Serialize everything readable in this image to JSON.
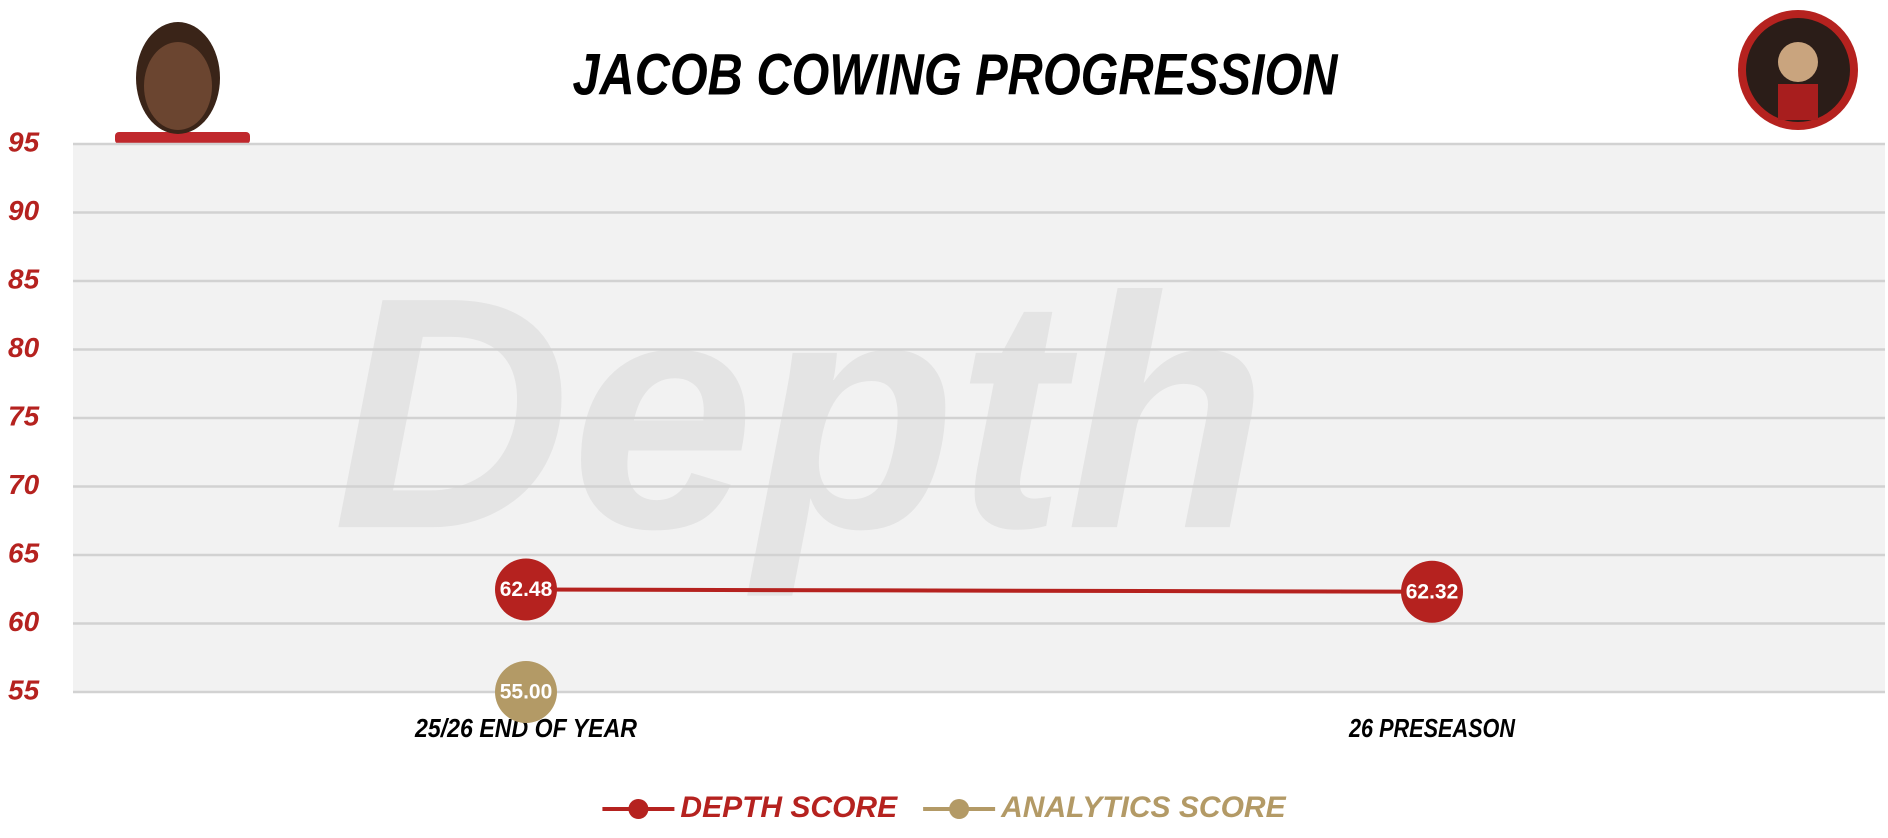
{
  "chart_data": {
    "type": "line",
    "title": "JACOB COWING PROGRESSION",
    "watermark": "Depth",
    "categories": [
      "25/26 END OF YEAR",
      "26 PRESEASON"
    ],
    "series": [
      {
        "name": "DEPTH SCORE",
        "color": "#b5221f",
        "values": [
          62.48,
          62.32
        ]
      },
      {
        "name": "ANALYTICS SCORE",
        "color": "#b39a66",
        "values": [
          55.0,
          null
        ],
        "value_labels": [
          "55.00",
          null
        ]
      }
    ],
    "ylim": [
      55,
      95
    ],
    "yticks": [
      55,
      60,
      65,
      70,
      75,
      80,
      85,
      90,
      95
    ],
    "grid": true,
    "legend": "bottom"
  }
}
